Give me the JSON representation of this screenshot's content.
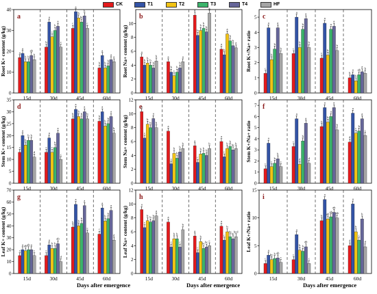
{
  "legend": [
    {
      "name": "CK",
      "color": "#e31a1c"
    },
    {
      "name": "T1",
      "color": "#3353a6"
    },
    {
      "name": "T2",
      "color": "#f2c315"
    },
    {
      "name": "T3",
      "color": "#3bb36b"
    },
    {
      "name": "T4",
      "color": "#666699"
    },
    {
      "name": "HF",
      "color": "#a6a6a6"
    }
  ],
  "xlabel": "Days after emergence",
  "chart_data": [
    {
      "type": "bar",
      "panel": "a",
      "ylabel": "Root K+ content (g/kg)",
      "ylim": [
        0,
        40
      ],
      "yticks": [
        0,
        10,
        20,
        30,
        40
      ],
      "categories": [
        "15d",
        "30d",
        "45d",
        "60d"
      ],
      "series": [
        {
          "name": "CK",
          "values": [
            17,
            22,
            31,
            12
          ]
        },
        {
          "name": "T1",
          "values": [
            19,
            34,
            39,
            18
          ]
        },
        {
          "name": "T2",
          "values": [
            15,
            27,
            36,
            12
          ]
        },
        {
          "name": "T3",
          "values": [
            15,
            30,
            34,
            13
          ]
        },
        {
          "name": "T4",
          "values": [
            18,
            32,
            37,
            16
          ]
        },
        {
          "name": "HF",
          "values": [
            16,
            22,
            31,
            15
          ]
        }
      ],
      "letters": [
        [
          "a",
          "a",
          "b",
          "b",
          "ab",
          "b"
        ],
        [
          "b",
          "a",
          "c",
          "b",
          "a",
          "c"
        ],
        [
          "c",
          "a",
          "b",
          "bc",
          "b",
          "c"
        ],
        [
          "b",
          "a",
          "b",
          "b",
          "a",
          "a"
        ]
      ]
    },
    {
      "type": "bar",
      "panel": "b",
      "ylabel": "Root Na+ content (g/kg)",
      "ylim": [
        0,
        12
      ],
      "yticks": [
        0,
        2,
        4,
        6,
        8,
        10
      ],
      "categories": [
        "15d",
        "30d",
        "45d",
        "60d"
      ],
      "series": [
        {
          "name": "CK",
          "values": [
            5.2,
            4.5,
            11.2,
            6.3
          ]
        },
        {
          "name": "T1",
          "values": [
            4.0,
            3.0,
            8.3,
            5.5
          ]
        },
        {
          "name": "T2",
          "values": [
            4.3,
            2.5,
            9.0,
            8.5
          ]
        },
        {
          "name": "T3",
          "values": [
            4.0,
            3.0,
            9.3,
            7.5
          ]
        },
        {
          "name": "T4",
          "values": [
            3.6,
            3.6,
            8.8,
            6.8
          ]
        },
        {
          "name": "HF",
          "values": [
            4.6,
            4.5,
            11.5,
            6.5
          ]
        }
      ],
      "letters": [
        [
          "a",
          "b",
          "b",
          "b",
          "b",
          "b"
        ],
        [
          "a",
          "b",
          "c",
          "b",
          "b",
          "a"
        ],
        [
          "a",
          "b",
          "b",
          "b",
          "b",
          "a"
        ],
        [
          "a",
          "b",
          "a",
          "b",
          "b",
          "a"
        ]
      ]
    },
    {
      "type": "bar",
      "panel": "c",
      "ylabel": "Root K+/Na+ ratio",
      "ylim": [
        0,
        5.5
      ],
      "yticks": [
        0,
        1,
        2,
        3,
        4,
        5
      ],
      "categories": [
        "15d",
        "30d",
        "45d",
        "60d"
      ],
      "series": [
        {
          "name": "CK",
          "values": [
            1.3,
            2.6,
            2.3,
            1.0
          ]
        },
        {
          "name": "T1",
          "values": [
            4.3,
            5.0,
            4.6,
            1.2
          ]
        },
        {
          "name": "T2",
          "values": [
            2.2,
            3.0,
            2.5,
            0.8
          ]
        },
        {
          "name": "T3",
          "values": [
            2.9,
            4.2,
            4.2,
            1.2
          ]
        },
        {
          "name": "T4",
          "values": [
            4.3,
            4.9,
            4.4,
            1.4
          ]
        },
        {
          "name": "HF",
          "values": [
            2.6,
            3.0,
            2.8,
            1.3
          ]
        }
      ],
      "letters": [
        [
          "c",
          "a",
          "b",
          "b",
          "a",
          "b"
        ],
        [
          "c",
          "a",
          "b",
          "b",
          "a",
          "b"
        ],
        [
          "c",
          "a",
          "b",
          "a",
          "a",
          "b"
        ],
        [
          "b",
          "a",
          "b",
          "ab",
          "a",
          "b"
        ]
      ]
    },
    {
      "type": "bar",
      "panel": "d",
      "ylabel": "Stem K+ content (g/kg)",
      "ylim": [
        0,
        35
      ],
      "yticks": [
        0,
        5,
        10,
        15,
        20,
        25,
        30,
        35
      ],
      "categories": [
        "15d",
        "30d",
        "45d",
        "60d"
      ],
      "series": [
        {
          "name": "CK",
          "values": [
            13,
            13,
            27,
            26
          ]
        },
        {
          "name": "T1",
          "values": [
            20,
            19,
            31,
            30
          ]
        },
        {
          "name": "T2",
          "values": [
            16,
            13,
            28,
            24
          ]
        },
        {
          "name": "T3",
          "values": [
            18,
            15,
            27,
            25
          ]
        },
        {
          "name": "T4",
          "values": [
            18,
            21,
            30,
            28
          ]
        },
        {
          "name": "HF",
          "values": [
            11,
            10,
            27,
            21
          ]
        }
      ],
      "letters": [
        [
          "c",
          "a",
          "b",
          "b",
          "b",
          "d"
        ],
        [
          "c",
          "a",
          "c",
          "b",
          "a",
          "c"
        ],
        [
          "b",
          "a",
          "b",
          "b",
          "a",
          "b"
        ],
        [
          "b",
          "a",
          "b",
          "b",
          "a",
          "b"
        ]
      ]
    },
    {
      "type": "bar",
      "panel": "e",
      "ylabel": "Stem Na+ content (g/kg)",
      "ylim": [
        0,
        12
      ],
      "yticks": [
        0,
        2,
        4,
        6,
        8,
        10,
        12
      ],
      "categories": [
        "15d",
        "30d",
        "45d",
        "60d"
      ],
      "series": [
        {
          "name": "CK",
          "values": [
            10.3,
            7.5,
            5.4,
            6.0
          ]
        },
        {
          "name": "T1",
          "values": [
            6.5,
            2.8,
            3.0,
            3.8
          ]
        },
        {
          "name": "T2",
          "values": [
            8.5,
            4.3,
            4.2,
            5.0
          ]
        },
        {
          "name": "T3",
          "values": [
            8.0,
            3.6,
            4.3,
            5.3
          ]
        },
        {
          "name": "T4",
          "values": [
            9.3,
            4.5,
            4.0,
            4.8
          ]
        },
        {
          "name": "HF",
          "values": [
            8.0,
            5.0,
            5.0,
            5.0
          ]
        }
      ],
      "letters": [
        [
          "a",
          "c",
          "b",
          "b",
          "a",
          "b"
        ],
        [
          "a",
          "c",
          "b",
          "b",
          "b",
          "b"
        ],
        [
          "a",
          "c",
          "b",
          "b",
          "b",
          "b"
        ],
        [
          "a",
          "c",
          "b",
          "b",
          "bc",
          "b"
        ]
      ]
    },
    {
      "type": "bar",
      "panel": "f",
      "ylabel": "Stem K+/Na+ ratio",
      "ylim": [
        0,
        7.5
      ],
      "yticks": [
        0,
        1,
        2,
        3,
        4,
        5,
        6,
        7
      ],
      "categories": [
        "15d",
        "30d",
        "45d",
        "60d"
      ],
      "series": [
        {
          "name": "CK",
          "values": [
            1.3,
            3.3,
            5.1,
            3.7
          ]
        },
        {
          "name": "T1",
          "values": [
            3.6,
            5.8,
            6.8,
            6.3
          ]
        },
        {
          "name": "T2",
          "values": [
            1.5,
            1.7,
            5.5,
            4.5
          ]
        },
        {
          "name": "T3",
          "values": [
            1.8,
            3.8,
            6.0,
            4.7
          ]
        },
        {
          "name": "T4",
          "values": [
            2.2,
            5.4,
            6.8,
            5.8
          ]
        },
        {
          "name": "HF",
          "values": [
            1.5,
            1.8,
            4.8,
            4.3
          ]
        }
      ],
      "letters": [
        [
          "c",
          "a",
          "c",
          "b",
          "b",
          "c"
        ],
        [
          "c",
          "a",
          "d",
          "b",
          "a",
          "d"
        ],
        [
          "b",
          "a",
          "b",
          "a",
          "a",
          "b"
        ],
        [
          "d",
          "a",
          "c",
          "b",
          "a",
          "c"
        ]
      ]
    },
    {
      "type": "bar",
      "panel": "g",
      "ylabel": "Leaf K+ content (g/kg)",
      "ylim": [
        0,
        70
      ],
      "yticks": [
        0,
        10,
        20,
        30,
        40,
        50,
        60,
        70
      ],
      "categories": [
        "15d",
        "30d",
        "45d",
        "60d"
      ],
      "series": [
        {
          "name": "CK",
          "values": [
            15,
            15,
            39,
            33
          ]
        },
        {
          "name": "T1",
          "values": [
            20,
            24,
            58,
            55
          ]
        },
        {
          "name": "T2",
          "values": [
            19,
            21,
            40,
            44
          ]
        },
        {
          "name": "T3",
          "values": [
            20,
            21,
            42,
            46
          ]
        },
        {
          "name": "T4",
          "values": [
            20,
            25,
            57,
            53
          ]
        },
        {
          "name": "HF",
          "values": [
            15,
            10,
            34,
            28
          ]
        }
      ],
      "letters": [
        [
          "c",
          "a",
          "ab",
          "ab",
          "a",
          "c"
        ],
        [
          "c",
          "a",
          "b",
          "b",
          "ab",
          "d"
        ],
        [
          "b",
          "a",
          "b",
          "b",
          "a",
          "c"
        ],
        [
          "c",
          "a",
          "b",
          "b",
          "a",
          "d"
        ]
      ]
    },
    {
      "type": "bar",
      "panel": "h",
      "ylabel": "Leaf Na+ content (g/kg)",
      "ylim": [
        0,
        12
      ],
      "yticks": [
        0,
        2,
        4,
        6,
        8,
        10,
        12
      ],
      "categories": [
        "15d",
        "30d",
        "45d",
        "60d"
      ],
      "series": [
        {
          "name": "CK",
          "values": [
            9.2,
            7.4,
            5.4,
            6.8
          ]
        },
        {
          "name": "T1",
          "values": [
            6.6,
            3.8,
            3.0,
            4.8
          ]
        },
        {
          "name": "T2",
          "values": [
            7.6,
            5.0,
            4.6,
            6.0
          ]
        },
        {
          "name": "T3",
          "values": [
            7.4,
            5.0,
            3.6,
            5.3
          ]
        },
        {
          "name": "T4",
          "values": [
            7.6,
            3.8,
            3.8,
            5.0
          ]
        },
        {
          "name": "HF",
          "values": [
            8.3,
            6.3,
            4.0,
            5.3
          ]
        }
      ],
      "letters": [
        [
          "a",
          "c",
          "b",
          "b",
          "b",
          "a"
        ],
        [
          "a",
          "c",
          "b",
          "b",
          "c",
          "b"
        ],
        [
          "a",
          "c",
          "b",
          "bc",
          "bc",
          "c"
        ],
        [
          "a",
          "c",
          "b",
          "bc",
          "bc",
          "bcd"
        ]
      ]
    },
    {
      "type": "bar",
      "panel": "i",
      "ylabel": "Leaf K+/Na+ ratio",
      "ylim": [
        0,
        15
      ],
      "yticks": [
        0,
        5,
        10,
        15
      ],
      "categories": [
        "15d",
        "30d",
        "45d",
        "60d"
      ],
      "series": [
        {
          "name": "CK",
          "values": [
            1.8,
            2.5,
            9.5,
            5.0
          ]
        },
        {
          "name": "T1",
          "values": [
            3.3,
            7.0,
            13.3,
            12.5
          ]
        },
        {
          "name": "T2",
          "values": [
            2.5,
            4.2,
            9.8,
            7.5
          ]
        },
        {
          "name": "T3",
          "values": [
            2.7,
            4.0,
            10.2,
            6.0
          ]
        },
        {
          "name": "T4",
          "values": [
            2.8,
            4.8,
            11.0,
            9.8
          ]
        },
        {
          "name": "HF",
          "values": [
            2.0,
            1.8,
            10.0,
            4.8
          ]
        }
      ],
      "letters": [
        [
          "c",
          "a",
          "bc",
          "b",
          "ab",
          "c"
        ],
        [
          "c",
          "a",
          "b",
          "b",
          "ab",
          "c"
        ],
        [
          "b",
          "a",
          "ab",
          "ab",
          "ab",
          "ab"
        ],
        [
          "d",
          "a",
          "b",
          "c",
          "b",
          "d"
        ]
      ]
    }
  ]
}
